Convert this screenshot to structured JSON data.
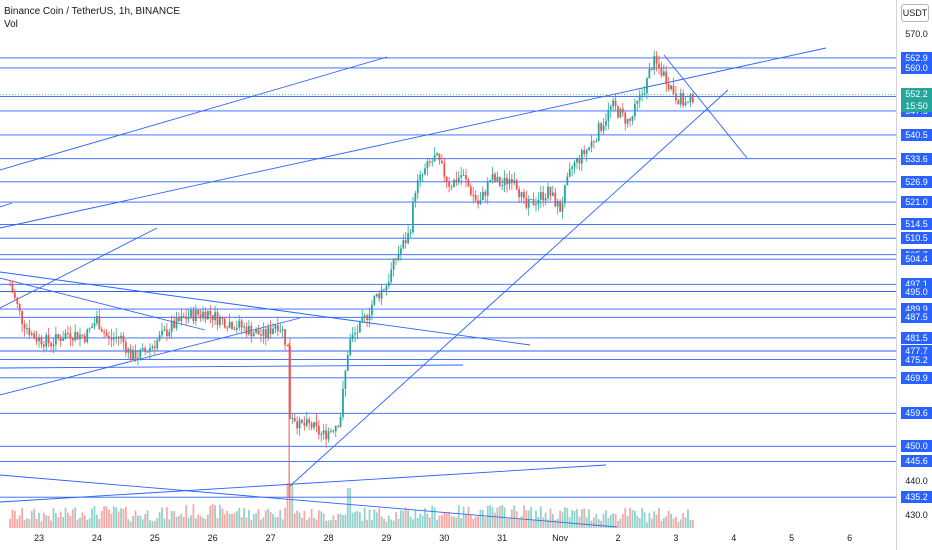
{
  "header": {
    "title": "Binance Coin / TetherUS, 1h, BINANCE",
    "vol_label": "Vol"
  },
  "axis": {
    "currency_button": "USDT",
    "current_price": "552.2",
    "countdown": "15:50"
  },
  "chart_data": {
    "type": "candlestick",
    "ylim": [
      426,
      574
    ],
    "x_ticks": [
      "23",
      "24",
      "25",
      "26",
      "27",
      "28",
      "29",
      "30",
      "31",
      "Nov",
      "2",
      "3",
      "4",
      "5",
      "6"
    ],
    "y_ticks": [
      "570.0",
      "440.0",
      "430.0"
    ],
    "horizontal_levels": [
      "562.9",
      "560.0",
      "551.7",
      "547.5",
      "540.5",
      "533.6",
      "526.9",
      "521.0",
      "514.5",
      "510.5",
      "505.7",
      "504.4",
      "497.1",
      "495.0",
      "489.9",
      "487.5",
      "481.5",
      "477.7",
      "475.2",
      "469.9",
      "459.6",
      "450.0",
      "445.6",
      "435.2"
    ],
    "close_path": [
      [
        22.5,
        497
      ],
      [
        22.7,
        487
      ],
      [
        22.9,
        482
      ],
      [
        23.2,
        480
      ],
      [
        23.5,
        483
      ],
      [
        23.8,
        482
      ],
      [
        24.0,
        487
      ],
      [
        24.2,
        481
      ],
      [
        24.4,
        482
      ],
      [
        24.6,
        476
      ],
      [
        24.8,
        477
      ],
      [
        25.0,
        480
      ],
      [
        25.3,
        485
      ],
      [
        25.6,
        488
      ],
      [
        25.9,
        489
      ],
      [
        26.1,
        487
      ],
      [
        26.3,
        486
      ],
      [
        26.6,
        484
      ],
      [
        26.9,
        482
      ],
      [
        27.1,
        486
      ],
      [
        27.2,
        484
      ],
      [
        27.3,
        478
      ],
      [
        27.35,
        460
      ],
      [
        27.5,
        456
      ],
      [
        27.7,
        456
      ],
      [
        27.9,
        453
      ],
      [
        28.1,
        456
      ],
      [
        28.2,
        458
      ],
      [
        28.35,
        480
      ],
      [
        28.6,
        486
      ],
      [
        28.8,
        493
      ],
      [
        29.0,
        497
      ],
      [
        29.2,
        506
      ],
      [
        29.4,
        512
      ],
      [
        29.5,
        525
      ],
      [
        29.7,
        531
      ],
      [
        29.85,
        534
      ],
      [
        30.1,
        526
      ],
      [
        30.3,
        529
      ],
      [
        30.6,
        520
      ],
      [
        30.8,
        528
      ],
      [
        31.0,
        526
      ],
      [
        31.2,
        529
      ],
      [
        31.4,
        519
      ],
      [
        31.6,
        522
      ],
      [
        31.8,
        524
      ],
      [
        32.0,
        519
      ],
      [
        32.2,
        531
      ],
      [
        32.5,
        537
      ],
      [
        32.9,
        549
      ],
      [
        33.2,
        544
      ],
      [
        33.5,
        556
      ],
      [
        33.6,
        562
      ],
      [
        33.8,
        558
      ],
      [
        34.0,
        552
      ],
      [
        34.2,
        549
      ],
      [
        34.3,
        552
      ]
    ],
    "volume_relative": [
      0.3,
      0.45,
      0.35,
      0.5,
      0.4,
      0.3,
      0.35,
      0.45,
      0.5,
      0.4,
      0.35,
      0.3,
      0.4,
      0.45,
      0.35,
      0.3,
      0.5,
      0.6,
      1.0,
      0.7,
      0.55,
      0.5,
      0.8,
      0.65,
      0.7,
      0.6,
      0.9,
      0.75,
      0.6,
      0.55,
      0.5,
      0.45,
      0.4,
      0.5,
      0.55,
      0.6,
      0.5,
      0.45,
      0.5,
      0.6,
      0.55,
      0.5,
      0.7,
      0.5,
      0.4,
      0.3
    ]
  }
}
